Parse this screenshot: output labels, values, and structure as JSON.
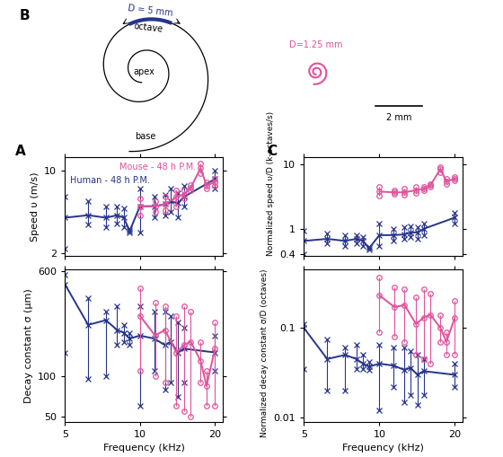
{
  "chart_data": [
    {
      "type": "line",
      "panel": "A",
      "ylabel": "Speed υ (m/s)",
      "log": true,
      "xlim": [
        5,
        21.5
      ],
      "ylim": [
        1.9,
        13
      ],
      "xticks": [
        5,
        10,
        20
      ],
      "yticks": [
        2,
        10
      ],
      "tick_labels": "y",
      "series": [
        {
          "name": "Human - 48 h P.M.",
          "color": "#27348b",
          "marker": "x",
          "x": [
            5,
            6.2,
            7.3,
            8.1,
            8.6,
            9.1,
            10,
            11.4,
            12.6,
            13.3,
            14.2,
            15,
            20
          ],
          "values": [
            4.0,
            4.2,
            4.0,
            4.2,
            4.0,
            3.1,
            5.0,
            5.0,
            5.2,
            5.5,
            5.3,
            6.0,
            8.5
          ],
          "error_bars": [
            [
              2.2,
              6.0
            ],
            [
              3.5,
              5.5
            ],
            [
              3.3,
              5.0
            ],
            [
              3.6,
              5.0
            ],
            [
              3.3,
              4.8
            ],
            [
              3.0,
              3.2
            ],
            [
              3.0,
              7.0
            ],
            [
              4.0,
              6.0
            ],
            [
              4.2,
              6.3
            ],
            [
              4.5,
              7.0
            ],
            [
              4.0,
              6.5
            ],
            [
              5.0,
              7.5
            ],
            [
              7.0,
              10.0
            ]
          ]
        },
        {
          "name": "Mouse - 48 h P.M.",
          "color": "#e0529c",
          "marker": "circle",
          "x": [
            10,
            11.5,
            12.6,
            14,
            15,
            16,
            17.5,
            18.5,
            20
          ],
          "values": [
            5.0,
            5.0,
            5.2,
            6.0,
            6.3,
            7.2,
            10.5,
            7.5,
            8.0
          ],
          "error_bars": [
            [
              4.2,
              5.8
            ],
            [
              4.5,
              5.5
            ],
            [
              4.6,
              6.0
            ],
            [
              5.0,
              6.8
            ],
            [
              5.8,
              6.8
            ],
            [
              6.8,
              7.6
            ],
            [
              9.5,
              11.5
            ],
            [
              7.0,
              8.0
            ],
            [
              7.5,
              8.6
            ]
          ]
        }
      ]
    },
    {
      "type": "line",
      "xlabel": "Frequency (kHz)",
      "ylabel": "Decay constant σ (μm)",
      "log": true,
      "xlim": [
        5,
        21.5
      ],
      "ylim": [
        46,
        620
      ],
      "xticks": [
        5,
        10,
        20
      ],
      "yticks": [
        50,
        100,
        600
      ],
      "series": [
        {
          "color": "#27348b",
          "marker": "x",
          "x": [
            5,
            6.2,
            7.3,
            8.1,
            8.6,
            9.1,
            10,
            11.4,
            12.6,
            13.3,
            14.2,
            15,
            20
          ],
          "values": [
            480,
            240,
            260,
            220,
            210,
            190,
            200,
            190,
            170,
            180,
            150,
            160,
            150
          ],
          "error_bars": [
            [
              150,
              560
            ],
            [
              95,
              380
            ],
            [
              100,
              300
            ],
            [
              170,
              330
            ],
            [
              180,
              240
            ],
            [
              170,
              210
            ],
            [
              60,
              330
            ],
            [
              110,
              300
            ],
            [
              80,
              300
            ],
            [
              90,
              280
            ],
            [
              70,
              250
            ],
            [
              90,
              230
            ],
            [
              110,
              200
            ]
          ]
        },
        {
          "color": "#e0529c",
          "marker": "circle",
          "x": [
            10,
            11.5,
            12.6,
            14,
            15,
            16,
            17.5,
            18.5,
            20
          ],
          "values": [
            280,
            200,
            220,
            150,
            170,
            180,
            130,
            85,
            160
          ],
          "error_bars": [
            [
              110,
              450
            ],
            [
              100,
              350
            ],
            [
              90,
              330
            ],
            [
              60,
              280
            ],
            [
              55,
              330
            ],
            [
              50,
              300
            ],
            [
              90,
              180
            ],
            [
              60,
              110
            ],
            [
              60,
              250
            ]
          ]
        }
      ]
    },
    {
      "type": "line",
      "panel": "C",
      "ylabel": "Normalized speed υ/D (k-octaves/s)",
      "log": true,
      "xlim": [
        5,
        21.5
      ],
      "ylim": [
        0.38,
        13
      ],
      "xticks": [
        5,
        10,
        20
      ],
      "yticks": [
        0.4,
        1,
        10
      ],
      "tick_labels": "y",
      "series": [
        {
          "color": "#27348b",
          "marker": "x",
          "x": [
            5,
            6.2,
            7.3,
            8.1,
            8.6,
            9.1,
            10,
            11.4,
            12.6,
            13.3,
            14.2,
            15,
            20
          ],
          "values": [
            0.65,
            0.7,
            0.65,
            0.7,
            0.65,
            0.5,
            0.8,
            0.8,
            0.82,
            0.88,
            0.88,
            1.0,
            1.5
          ],
          "error_bars": [
            [
              0.4,
              0.95
            ],
            [
              0.6,
              0.85
            ],
            [
              0.55,
              0.8
            ],
            [
              0.6,
              0.8
            ],
            [
              0.55,
              0.75
            ],
            [
              0.48,
              0.52
            ],
            [
              0.55,
              1.2
            ],
            [
              0.65,
              1.0
            ],
            [
              0.7,
              1.05
            ],
            [
              0.75,
              1.1
            ],
            [
              0.7,
              1.05
            ],
            [
              0.8,
              1.2
            ],
            [
              1.2,
              1.8
            ]
          ]
        },
        {
          "color": "#e0529c",
          "marker": "circle",
          "x": [
            10,
            11.5,
            12.6,
            14,
            15,
            16,
            17.5,
            18.5,
            20
          ],
          "values": [
            3.8,
            3.7,
            3.7,
            4.0,
            4.2,
            4.8,
            8.5,
            5.5,
            6.0
          ],
          "error_bars": [
            [
              3.3,
              4.5
            ],
            [
              3.5,
              4.0
            ],
            [
              3.4,
              4.2
            ],
            [
              3.6,
              4.5
            ],
            [
              4.0,
              4.5
            ],
            [
              4.5,
              5.0
            ],
            [
              7.5,
              9.2
            ],
            [
              5.0,
              6.0
            ],
            [
              5.6,
              6.5
            ]
          ]
        }
      ]
    },
    {
      "type": "line",
      "xlabel": "Frequency (kHz)",
      "ylabel": "Normalized decay constant σ/D (octaves)",
      "log": true,
      "xlim": [
        5,
        21.5
      ],
      "ylim": [
        0.009,
        0.45
      ],
      "xticks": [
        5,
        10,
        20
      ],
      "yticks": [
        0.01,
        0.1
      ],
      "series": [
        {
          "color": "#27348b",
          "marker": "x",
          "x": [
            5,
            6.2,
            7.3,
            8.1,
            8.6,
            9.1,
            10,
            11.4,
            12.6,
            13.3,
            14.2,
            15,
            20
          ],
          "values": [
            0.1,
            0.045,
            0.05,
            0.045,
            0.04,
            0.037,
            0.04,
            0.038,
            0.034,
            0.036,
            0.03,
            0.033,
            0.03
          ],
          "error_bars": [
            [
              0.035,
              0.11
            ],
            [
              0.02,
              0.075
            ],
            [
              0.02,
              0.06
            ],
            [
              0.035,
              0.065
            ],
            [
              0.035,
              0.05
            ],
            [
              0.034,
              0.042
            ],
            [
              0.012,
              0.065
            ],
            [
              0.022,
              0.06
            ],
            [
              0.015,
              0.06
            ],
            [
              0.018,
              0.055
            ],
            [
              0.014,
              0.05
            ],
            [
              0.018,
              0.045
            ],
            [
              0.022,
              0.04
            ]
          ]
        },
        {
          "color": "#e0529c",
          "marker": "circle",
          "x": [
            10,
            11.5,
            12.6,
            14,
            15,
            16,
            17.5,
            18.5,
            20
          ],
          "values": [
            0.23,
            0.17,
            0.18,
            0.11,
            0.13,
            0.14,
            0.1,
            0.07,
            0.13
          ],
          "error_bars": [
            [
              0.09,
              0.36
            ],
            [
              0.08,
              0.28
            ],
            [
              0.07,
              0.27
            ],
            [
              0.05,
              0.22
            ],
            [
              0.045,
              0.27
            ],
            [
              0.04,
              0.24
            ],
            [
              0.07,
              0.14
            ],
            [
              0.05,
              0.09
            ],
            [
              0.05,
              0.2
            ]
          ]
        }
      ]
    }
  ],
  "diagram": {
    "panel": "B",
    "human_label": "D = 5 mm",
    "arc_label": "octave",
    "apex_label": "apex",
    "base_label": "base",
    "mouse_label": "D=1.25 mm",
    "scale_label": "2 mm",
    "human_color": "#27348b",
    "mouse_color": "#e0529c"
  }
}
